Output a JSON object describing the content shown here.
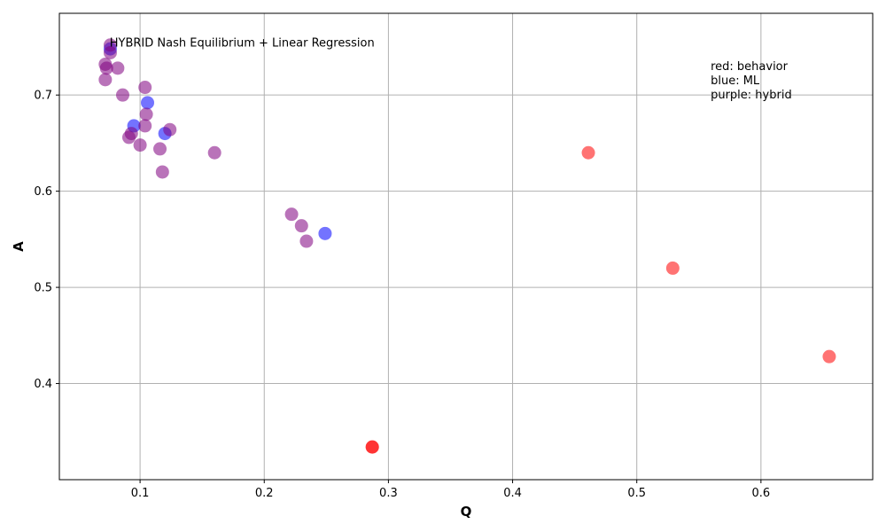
{
  "chart_data": {
    "type": "scatter",
    "title": "",
    "xlabel": "Q",
    "ylabel": "A",
    "xlim": [
      0.035,
      0.69
    ],
    "ylim": [
      0.3,
      0.785
    ],
    "xticks": [
      0.1,
      0.2,
      0.3,
      0.4,
      0.5,
      0.6
    ],
    "xtick_labels": [
      "0.1",
      "0.2",
      "0.3",
      "0.4",
      "0.5",
      "0.6"
    ],
    "yticks": [
      0.4,
      0.5,
      0.6,
      0.7
    ],
    "ytick_labels": [
      "0.4",
      "0.5",
      "0.6",
      "0.7"
    ],
    "grid": true,
    "colors": {
      "red": "#ff0000",
      "blue": "#0000ff",
      "purple": "#800080",
      "grid": "#b0b0b0"
    },
    "annotations": {
      "method": "HYBRID Nash Equilibrium + Linear Regression",
      "legend_lines": [
        "red: behavior",
        "blue: ML",
        "purple: hybrid"
      ]
    },
    "series": [
      {
        "color": "red",
        "points": [
          [
            0.461,
            0.64
          ],
          [
            0.529,
            0.52
          ],
          [
            0.655,
            0.428
          ],
          [
            0.287,
            0.334
          ],
          [
            0.287,
            0.334
          ]
        ]
      },
      {
        "color": "blue",
        "points": [
          [
            0.095,
            0.668
          ],
          [
            0.106,
            0.692
          ],
          [
            0.12,
            0.66
          ],
          [
            0.249,
            0.556
          ],
          [
            0.076,
            0.748
          ]
        ]
      },
      {
        "color": "purple",
        "points": [
          [
            0.076,
            0.752
          ],
          [
            0.076,
            0.744
          ],
          [
            0.072,
            0.732
          ],
          [
            0.073,
            0.728
          ],
          [
            0.072,
            0.716
          ],
          [
            0.082,
            0.728
          ],
          [
            0.086,
            0.7
          ],
          [
            0.104,
            0.708
          ],
          [
            0.105,
            0.68
          ],
          [
            0.104,
            0.668
          ],
          [
            0.124,
            0.664
          ],
          [
            0.093,
            0.66
          ],
          [
            0.091,
            0.656
          ],
          [
            0.1,
            0.648
          ],
          [
            0.116,
            0.644
          ],
          [
            0.118,
            0.62
          ],
          [
            0.16,
            0.64
          ],
          [
            0.222,
            0.576
          ],
          [
            0.23,
            0.564
          ],
          [
            0.234,
            0.548
          ]
        ]
      }
    ]
  }
}
